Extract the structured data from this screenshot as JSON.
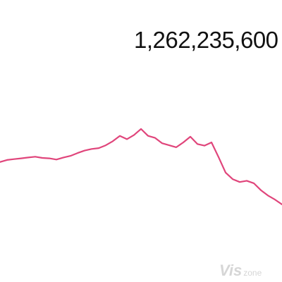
{
  "chart_data": {
    "type": "line",
    "value_readout": "1,262,235,600",
    "series": [
      {
        "color": "#e0457b",
        "x": [
          0,
          1,
          2,
          3,
          4,
          5,
          6,
          7,
          8,
          9,
          10,
          11,
          12,
          13,
          14,
          15,
          16,
          17,
          18,
          19,
          20,
          21,
          22,
          23,
          24,
          25,
          26,
          27,
          28,
          29,
          30,
          31,
          32,
          33,
          34,
          35,
          36,
          37,
          38,
          39,
          40
        ],
        "values": [
          64,
          69,
          71,
          73,
          75,
          77,
          74,
          73,
          70,
          75,
          79,
          86,
          92,
          96,
          98,
          105,
          115,
          128,
          120,
          130,
          145,
          128,
          123,
          110,
          105,
          100,
          112,
          126,
          108,
          104,
          112,
          76,
          38,
          22,
          15,
          18,
          12,
          -5,
          -18,
          -28,
          -40
        ]
      }
    ],
    "xlim": [
      0,
      40
    ],
    "ylim": [
      -40,
      150
    ],
    "grid": false,
    "legend": "none"
  },
  "watermark": {
    "main": "Vis",
    "sub": "zone"
  }
}
